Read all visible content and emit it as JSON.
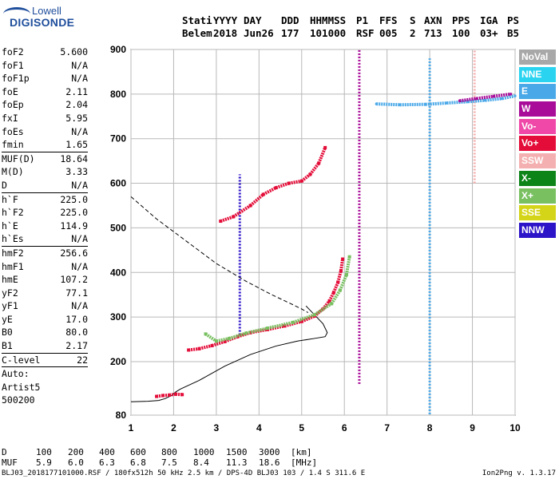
{
  "logo": {
    "line1": "Lowell",
    "line2": "DIGISONDE"
  },
  "header": {
    "labels": [
      "Stati",
      "YYYY",
      "DAY",
      "DDD",
      "HHMMSS",
      "P1",
      "FFS",
      "S",
      "AXN",
      "PPS",
      "IGA",
      "PS"
    ],
    "values": [
      "Belem",
      "2018",
      "Jun26",
      "177",
      "101000",
      "RSF",
      "005",
      "2",
      "713",
      "100",
      "03+",
      "B5"
    ]
  },
  "params": [
    {
      "k": "foF2",
      "v": "5.600"
    },
    {
      "k": "foF1",
      "v": "N/A"
    },
    {
      "k": "foF1p",
      "v": "N/A"
    },
    {
      "k": "foE",
      "v": "2.11"
    },
    {
      "k": "foEp",
      "v": "2.04"
    },
    {
      "k": "fxI",
      "v": "5.95"
    },
    {
      "k": "foEs",
      "v": "N/A"
    },
    {
      "k": "fmin",
      "v": "1.65"
    },
    {
      "k": "MUF(D)",
      "v": "18.64",
      "sep": true
    },
    {
      "k": "M(D)",
      "v": "3.33"
    },
    {
      "k": "D",
      "v": "N/A"
    },
    {
      "k": "h`F",
      "v": "225.0",
      "sep": true
    },
    {
      "k": "h`F2",
      "v": "225.0"
    },
    {
      "k": "h`E",
      "v": "114.9"
    },
    {
      "k": "h`Es",
      "v": "N/A"
    },
    {
      "k": "hmF2",
      "v": "256.6",
      "sep": true
    },
    {
      "k": "hmF1",
      "v": "N/A"
    },
    {
      "k": "hmE",
      "v": "107.2"
    },
    {
      "k": "yF2",
      "v": "77.1"
    },
    {
      "k": "yF1",
      "v": "N/A"
    },
    {
      "k": "yE",
      "v": "17.0"
    },
    {
      "k": "B0",
      "v": "80.0"
    },
    {
      "k": "B1",
      "v": "2.17"
    },
    {
      "k": "C-level",
      "v": "22",
      "sep": true
    },
    {
      "k": "Auto:",
      "v": "",
      "sep": true
    },
    {
      "k": "Artist5",
      "v": ""
    },
    {
      "k": "500200",
      "v": ""
    }
  ],
  "legend": [
    {
      "label": "NoVal",
      "color": "#a8a8a8"
    },
    {
      "label": "NNE",
      "color": "#2ad4f0"
    },
    {
      "label": "E",
      "color": "#48a8e8"
    },
    {
      "label": "W",
      "color": "#a80c98"
    },
    {
      "label": "Vo-",
      "color": "#f048a8"
    },
    {
      "label": "Vo+",
      "color": "#e40c38"
    },
    {
      "label": "SSW",
      "color": "#f4b0b0"
    },
    {
      "label": "X-",
      "color": "#0c8418"
    },
    {
      "label": "X+",
      "color": "#78c060"
    },
    {
      "label": "SSE",
      "color": "#d4d418"
    },
    {
      "label": "NNW",
      "color": "#2c14c8"
    }
  ],
  "bottom": {
    "d_label": "D",
    "d_values": [
      "100",
      "200",
      "400",
      "600",
      "800",
      "1000",
      "1500",
      "3000"
    ],
    "d_unit": "[km]",
    "muf_label": "MUF",
    "muf_values": [
      "5.9",
      "6.0",
      "6.3",
      "6.8",
      "7.5",
      "8.4",
      "11.3",
      "18.6"
    ],
    "muf_unit": "[MHz]",
    "footer_left": "BLJ03_2018177101000.RSF / 180fx512h 50 kHz 2.5 km / DPS-4D BLJ03 103 / 1.4 S 311.6 E",
    "footer_right": "Ion2Png v. 1.3.17"
  },
  "chart_data": {
    "type": "scatter",
    "xlim": [
      1,
      10
    ],
    "ylim": [
      80,
      900
    ],
    "xticks": [
      1,
      2,
      3,
      4,
      5,
      6,
      7,
      8,
      9,
      10
    ],
    "yticks": [
      80,
      200,
      300,
      400,
      500,
      600,
      700,
      800,
      900
    ],
    "grid": true,
    "traces": [
      {
        "name": "O-trace",
        "color": "#e40c38",
        "x": [
          2.35,
          2.6,
          2.9,
          3.2,
          3.5,
          3.8,
          4.2,
          4.6,
          5.0,
          5.3,
          5.5,
          5.65,
          5.75,
          5.85,
          5.92,
          5.96
        ],
        "y": [
          226,
          229,
          236,
          245,
          256,
          265,
          272,
          280,
          290,
          302,
          318,
          336,
          355,
          378,
          404,
          430
        ]
      },
      {
        "name": "X-trace",
        "color": "#78c060",
        "x": [
          2.75,
          3.0,
          3.3,
          3.7,
          4.2,
          4.8,
          5.3,
          5.7,
          5.9,
          6.05,
          6.12
        ],
        "y": [
          262,
          246,
          252,
          264,
          275,
          288,
          305,
          330,
          360,
          395,
          435
        ]
      },
      {
        "name": "multihop",
        "color": "#e40c38",
        "x": [
          3.1,
          3.4,
          3.8,
          4.1,
          4.4,
          4.7,
          5.0,
          5.2,
          5.4,
          5.55
        ],
        "y": [
          515,
          525,
          550,
          575,
          590,
          600,
          605,
          620,
          645,
          680
        ]
      },
      {
        "name": "Es-low",
        "color": "#e40c38",
        "x": [
          1.6,
          1.75,
          1.9,
          2.05,
          2.2
        ],
        "y": [
          122,
          124,
          125,
          127,
          126
        ]
      }
    ],
    "profile": {
      "style": "solid",
      "x": [
        1.0,
        1.4,
        1.65,
        1.8,
        1.95,
        2.05,
        2.15,
        2.6,
        3.2,
        3.8,
        4.4,
        4.9,
        5.3,
        5.55,
        5.6,
        5.5,
        5.3,
        5.1
      ],
      "y": [
        110,
        111,
        113,
        117,
        124,
        132,
        138,
        158,
        190,
        216,
        235,
        246,
        252,
        256,
        265,
        285,
        305,
        325
      ]
    },
    "profile_extrap": {
      "style": "dashed",
      "x": [
        1.0,
        1.6,
        2.3,
        3.0,
        3.7,
        4.3,
        4.7,
        5.0,
        5.15
      ],
      "y": [
        570,
        520,
        470,
        420,
        380,
        350,
        332,
        318,
        310
      ]
    },
    "vertical_columns": [
      {
        "x": 3.55,
        "color": "#2c14c8",
        "y_from": 260,
        "y_to": 620
      },
      {
        "x": 6.35,
        "color": "#a80c98",
        "y_from": 150,
        "y_to": 900
      },
      {
        "x": 8.0,
        "color": "#48a8e8",
        "y_from": 82,
        "y_to": 880
      },
      {
        "x": 9.05,
        "color": "#f4b0b0",
        "y_from": 600,
        "y_to": 900
      }
    ],
    "e_band": {
      "color": "#48a8e8",
      "x": [
        6.75,
        7.3,
        7.9,
        8.4,
        8.9,
        9.3,
        9.7,
        10.0
      ],
      "y": [
        778,
        776,
        777,
        780,
        783,
        786,
        790,
        796
      ]
    },
    "w_band": {
      "color": "#a80c98",
      "x": [
        8.7,
        9.1,
        9.5,
        9.9
      ],
      "y": [
        785,
        790,
        795,
        800
      ]
    }
  }
}
